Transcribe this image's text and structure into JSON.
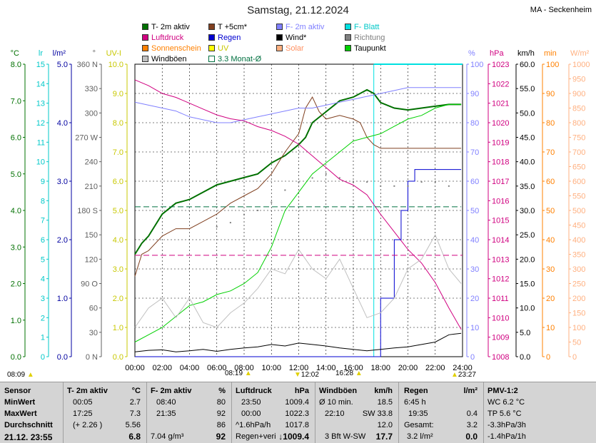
{
  "title": "Samstag, 21.12.2024",
  "station": "MA - Seckenheim",
  "legend": [
    {
      "label": "T- 2m aktiv",
      "color": "#007000"
    },
    {
      "label": "T +5cm*",
      "color": "#804020"
    },
    {
      "label": "F- 2m aktiv",
      "color": "#8080ff"
    },
    {
      "label": "F- Blatt",
      "color": "#00e0e0"
    },
    {
      "label": "Luftdruck",
      "color": "#d00080"
    },
    {
      "label": "Regen",
      "color": "#0000d0"
    },
    {
      "label": "Wind*",
      "color": "#000000"
    },
    {
      "label": "Richtung",
      "color": "#808080"
    },
    {
      "label": "Sonnenschein",
      "color": "#ff8000"
    },
    {
      "label": "UV",
      "color": "#ffff00"
    },
    {
      "label": "Solar",
      "color": "#ffb080"
    },
    {
      "label": "Taupunkt",
      "color": "#00d000"
    },
    {
      "label": "Windböen",
      "color": "#c0c0c0"
    },
    {
      "label": "3.3 Monat-Ø",
      "color": "#007040"
    }
  ],
  "chart_data": {
    "type": "line",
    "x_ticks": [
      "00:00",
      "02:00",
      "04:00",
      "06:00",
      "08:00",
      "10:00",
      "12:00",
      "14:00",
      "16:00",
      "18:00",
      "20:00",
      "22:00",
      "24:00"
    ],
    "axes_left": [
      {
        "unit": "°C",
        "color": "#007000",
        "ticks": [
          "0.0",
          "1.0",
          "2.0",
          "3.0",
          "4.0",
          "5.0",
          "6.0",
          "7.0",
          "8.0"
        ]
      },
      {
        "unit": "lr",
        "color": "#00c8c8",
        "ticks": [
          "0",
          "1",
          "2",
          "3",
          "4",
          "5",
          "6",
          "7",
          "8",
          "9",
          "10",
          "11",
          "12",
          "13",
          "14",
          "15"
        ]
      },
      {
        "unit": "l/m²",
        "color": "#0000a0",
        "ticks": [
          "0.0",
          "1.0",
          "2.0",
          "3.0",
          "4.0",
          "5.0"
        ]
      },
      {
        "unit": "°",
        "color": "#606060",
        "ticks": [
          "0 N",
          "30",
          "60",
          "90 O",
          "120",
          "150",
          "180 S",
          "210",
          "240",
          "270 W",
          "300",
          "330",
          "360 N"
        ]
      },
      {
        "unit": "UV-I",
        "color": "#c8c800",
        "ticks": [
          "0.0",
          "1.0",
          "2.0",
          "3.0",
          "4.0",
          "5.0",
          "6.0",
          "7.0",
          "8.0",
          "9.0",
          "10.0"
        ]
      }
    ],
    "axes_right": [
      {
        "unit": "%",
        "color": "#8080ff",
        "ticks": [
          "0",
          "10",
          "20",
          "30",
          "40",
          "50",
          "60",
          "70",
          "80",
          "90",
          "100"
        ]
      },
      {
        "unit": "hPa",
        "color": "#d00080",
        "ticks": [
          "1008",
          "1009",
          "1010",
          "1011",
          "1012",
          "1013",
          "1014",
          "1015",
          "1016",
          "1017",
          "1018",
          "1019",
          "1020",
          "1021",
          "1022",
          "1023"
        ]
      },
      {
        "unit": "km/h",
        "color": "#000000",
        "ticks": [
          "0.0",
          "5.0",
          "10.0",
          "15.0",
          "20.0",
          "25.0",
          "30.0",
          "35.0",
          "40.0",
          "45.0",
          "50.0",
          "55.0",
          "60.0"
        ]
      },
      {
        "unit": "min",
        "color": "#ff8000",
        "ticks": [
          "0",
          "10",
          "20",
          "30",
          "40",
          "50",
          "60",
          "70",
          "80",
          "90",
          "100"
        ]
      },
      {
        "unit": "W/m²",
        "color": "#ffb080",
        "ticks": [
          "0",
          "50",
          "100",
          "150",
          "200",
          "250",
          "300",
          "350",
          "400",
          "450",
          "500",
          "550",
          "600",
          "650",
          "700",
          "750",
          "800",
          "850",
          "900",
          "950",
          "1000"
        ]
      }
    ],
    "series": [
      {
        "name": "T- 2m aktiv",
        "color": "#007000",
        "unit": "°C",
        "x": [
          0,
          0.5,
          1,
          1.5,
          2,
          3,
          4,
          5,
          6,
          7,
          8,
          9,
          10,
          11,
          12,
          12.5,
          13,
          14,
          15,
          16,
          17,
          17.5,
          18,
          19,
          20,
          21,
          22,
          23,
          23.9
        ],
        "y": [
          2.8,
          3.1,
          3.3,
          3.6,
          3.9,
          4.2,
          4.3,
          4.5,
          4.7,
          4.8,
          4.9,
          5.0,
          5.3,
          5.5,
          5.8,
          6.0,
          6.4,
          6.7,
          7.0,
          7.1,
          7.3,
          7.2,
          6.95,
          6.8,
          6.75,
          6.8,
          6.85,
          6.9,
          6.9
        ]
      },
      {
        "name": "T +5cm*",
        "color": "#804020",
        "unit": "°C",
        "x": [
          0,
          0.5,
          1,
          1.5,
          2,
          3,
          4,
          5,
          6,
          7,
          8,
          9,
          10,
          11,
          12,
          12.5,
          13,
          13.5,
          14,
          15,
          16,
          16.5,
          17,
          17.5,
          18,
          19,
          20,
          21,
          22,
          23,
          23.9
        ],
        "y": [
          2.2,
          2.8,
          2.9,
          3.1,
          3.3,
          3.5,
          3.5,
          3.7,
          3.9,
          4.2,
          4.4,
          4.6,
          5.0,
          5.6,
          6.1,
          6.8,
          7.1,
          6.7,
          6.5,
          6.6,
          6.5,
          6.4,
          6.0,
          5.8,
          5.7,
          5.7,
          5.7,
          5.7,
          5.7,
          5.7,
          5.7
        ]
      },
      {
        "name": "F- 2m aktiv",
        "color": "#8080ff",
        "unit": "%",
        "x": [
          0,
          1,
          2,
          3,
          4,
          5,
          6,
          7,
          8,
          9,
          10,
          11,
          12,
          13,
          14,
          15,
          16,
          17,
          18,
          19,
          20,
          21,
          22,
          23,
          23.9
        ],
        "y": [
          87,
          86,
          85,
          84,
          82,
          81,
          80,
          80,
          81,
          82,
          83,
          84,
          85,
          85,
          86,
          87,
          88,
          89,
          90,
          91,
          92,
          92,
          92,
          92,
          92
        ]
      },
      {
        "name": "Luftdruck",
        "color": "#d00080",
        "unit": "hPa",
        "x": [
          0,
          1,
          2,
          3,
          4,
          5,
          6,
          7,
          8,
          9,
          10,
          11,
          12,
          13,
          14,
          15,
          16,
          17,
          18,
          19,
          20,
          21,
          22,
          23,
          23.9
        ],
        "y": [
          1022.2,
          1021.9,
          1021.5,
          1021.3,
          1021.0,
          1020.7,
          1020.4,
          1020.2,
          1020.1,
          1019.8,
          1019.6,
          1019.3,
          1018.9,
          1018.3,
          1017.7,
          1017.1,
          1016.8,
          1016.3,
          1015.3,
          1014.4,
          1013.5,
          1012.8,
          1011.8,
          1010.5,
          1009.4
        ]
      },
      {
        "name": "Taupunkt",
        "color": "#00d000",
        "unit": "°C",
        "x": [
          0,
          1,
          2,
          3,
          4,
          5,
          6,
          7,
          8,
          9,
          10,
          11,
          12,
          13,
          14,
          15,
          16,
          17,
          18,
          19,
          20,
          21,
          22,
          23,
          23.9
        ],
        "y": [
          0.4,
          0.6,
          0.8,
          1.1,
          1.4,
          1.5,
          1.7,
          1.8,
          2.0,
          2.3,
          3.0,
          4.0,
          4.5,
          5.0,
          5.3,
          5.6,
          5.9,
          6.0,
          6.1,
          6.3,
          6.5,
          6.6,
          6.8,
          6.9,
          6.9
        ]
      },
      {
        "name": "Regen",
        "color": "#0000d0",
        "unit": "l/m²",
        "x": [
          0,
          17.5,
          18,
          18.5,
          19,
          19.5,
          20,
          20.5,
          21,
          22,
          23,
          23.9
        ],
        "y": [
          0,
          0,
          1.0,
          1.0,
          2.0,
          2.5,
          3.0,
          3.2,
          3.2,
          3.2,
          3.2,
          3.2
        ]
      },
      {
        "name": "Wind*",
        "color": "#000000",
        "unit": "km/h",
        "x": [
          0,
          1,
          2,
          3,
          4,
          5,
          6,
          7,
          8,
          9,
          10,
          11,
          12,
          13,
          14,
          15,
          16,
          17,
          18,
          19,
          20,
          21,
          22,
          23,
          23.9
        ],
        "y": [
          1.0,
          1.3,
          1.4,
          1.0,
          1.2,
          1.5,
          1.1,
          1.5,
          1.8,
          2.0,
          2.5,
          2.2,
          2.8,
          2.5,
          2.2,
          1.8,
          1.5,
          1.2,
          1.5,
          1.8,
          2.0,
          2.5,
          3.0,
          4.5,
          4.8
        ]
      },
      {
        "name": "Windböen",
        "color": "#c0c0c0",
        "unit": "km/h",
        "x": [
          0,
          1,
          2,
          3,
          4,
          5,
          6,
          7,
          8,
          9,
          10,
          11,
          12,
          13,
          14,
          15,
          16,
          17,
          18,
          19,
          20,
          21,
          22,
          23,
          23.9
        ],
        "y": [
          6,
          10,
          12,
          8,
          12,
          7,
          6,
          9,
          11,
          14,
          18,
          17,
          22,
          18,
          16,
          20,
          14,
          8,
          9,
          12,
          18,
          20,
          25,
          18,
          15
        ]
      },
      {
        "name": "Richtung",
        "color": "#808080",
        "unit": "°",
        "x": [
          6,
          7,
          8,
          9,
          10,
          11,
          12,
          13,
          14,
          15,
          16,
          17,
          18,
          19,
          20,
          21,
          22,
          23
        ],
        "y": [
          160,
          165,
          175,
          180,
          190,
          205,
          215,
          220,
          225,
          220,
          215,
          215,
          210,
          210,
          210,
          215,
          215,
          210
        ]
      },
      {
        "name": "3.3 Monat-Ø",
        "color": "#007040",
        "unit": "°C",
        "x": [
          0,
          23.9
        ],
        "y": [
          4.1,
          4.1
        ]
      }
    ],
    "grid": true
  },
  "times": {
    "sunrise": "08:09",
    "sunset": "16:28",
    "moonset": "08:19",
    "noon": "12:02",
    "moonrise": "23:27"
  },
  "table": {
    "sensor": {
      "h": "Sensor",
      "min": "MinWert",
      "max": "MaxWert",
      "avg": "Durchschnitt",
      "now": "21.12.  23:55"
    },
    "t2m": {
      "h": "T- 2m aktiv",
      "u": "°C",
      "min_t": "00:05",
      "min_v": "2.7",
      "max_t": "17:25",
      "max_v": "7.3",
      "avg_l": "(+ 2.26 )",
      "avg_v": "5.56",
      "now_v": "6.8"
    },
    "f2m": {
      "h": "F- 2m aktiv",
      "u": "%",
      "min_t": "08:40",
      "min_v": "80",
      "max_t": "21:35",
      "max_v": "92",
      "avg_v": "86",
      "now_l": "7.04 g/m³",
      "now_v": "92"
    },
    "press": {
      "h": "Luftdruck",
      "u": "hPa",
      "min_t": "23:50",
      "min_v": "1009.4",
      "max_t": "00:00",
      "max_v": "1022.3",
      "avg_l": "^1.6hPa/h",
      "avg_v": "1017.8",
      "now_l": "Regen+veri",
      "now_v": "1009.4"
    },
    "wind": {
      "h": "Windböen",
      "u": "km/h",
      "r1_l": "Ø 10 min.",
      "r1_v": "18.5",
      "r2_l": "22:10",
      "r2_v": "SW 33.8",
      "r3_v": "12.0",
      "now_l": "3 Bft W-SW",
      "now_v": "17.7"
    },
    "rain": {
      "h": "Regen",
      "u": "l/m²",
      "r1_l": "6:45 h",
      "r2_l": "19:35",
      "r2_v": "0.4",
      "r3_l": "Gesamt:",
      "r3_v": "3.2",
      "now_l": "3.2 l/m²",
      "now_v": "0.0"
    },
    "pmv": {
      "h": "PMV-1:2",
      "r1": "WC 6.2 °C",
      "r2": "TP 5.6 °C",
      "r3": "-3.3hPa/3h",
      "r4": "-1.4hPa/1h"
    }
  }
}
